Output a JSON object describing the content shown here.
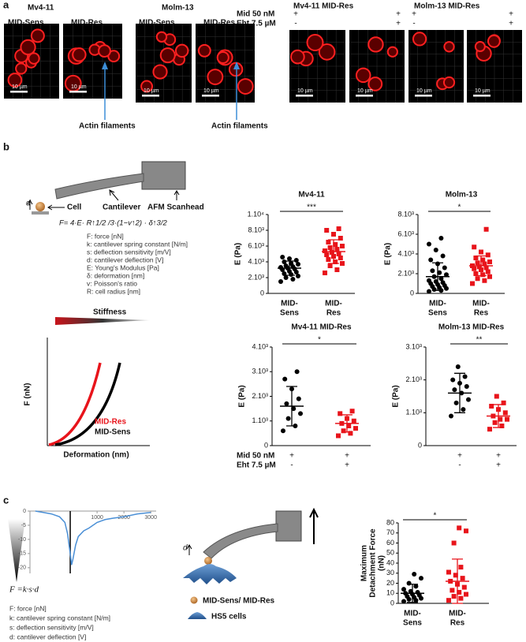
{
  "panel_a": {
    "label": "a",
    "cell_lines": [
      "Mv4-11",
      "Molm-13"
    ],
    "conditions": [
      "MID-Sens",
      "MID-Res",
      "MID-Sens",
      "MID-Res"
    ],
    "scale_bar": "10 µm",
    "annotation": "Actin filaments",
    "treatment_labels": [
      "Mid 50 nM",
      "Eht 7.5 µM"
    ],
    "treated_titles": [
      "Mv4-11 MID-Res",
      "Molm-13 MID-Res"
    ],
    "treatment_signs": [
      [
        "+",
        "-"
      ],
      [
        "+",
        "+"
      ],
      [
        "+",
        "-"
      ],
      [
        "+",
        "+"
      ]
    ]
  },
  "panel_b": {
    "label": "b",
    "afm_labels": {
      "cell": "Cell",
      "cantilever": "Cantilever",
      "scanhead": "AFM Scanhead",
      "deflection": "d"
    },
    "formula": "F= 4·E· R↑1/2 /3·(1−v↑2) · δ↑3/2",
    "legend": [
      "F: force [nN]",
      "k: cantilever spring constant [N/m]",
      "s: deflection sensitivity [m/V]",
      "d: cantilever deflection [V]",
      "E: Young's Modulus [Pa]",
      "δ: deformation [nm]",
      "v: Poisson's ratio",
      "R: cell radius [nm]"
    ],
    "stiffness": {
      "title": "Stiffness",
      "y_label": "F (nN)",
      "x_label": "Deformation (nm)",
      "curves": [
        "MID-Res",
        "MID-Sens"
      ]
    },
    "charts": [
      {
        "type": "dot",
        "title": "Mv4-11",
        "y_label": "E (Pa)",
        "ylim": [
          0,
          10000
        ],
        "yticks": [
          0,
          {
            "value": 2000,
            "label": "2.10³"
          },
          {
            "value": 4000,
            "label": "4.10³"
          },
          {
            "value": 6000,
            "label": "6.10³"
          },
          {
            "value": 8000,
            "label": "8.10³"
          },
          {
            "value": 10000,
            "label": "1.10⁴"
          }
        ],
        "categories": [
          [
            "MID-",
            "Sens"
          ],
          [
            "MID-",
            "Res"
          ]
        ],
        "significance": "***",
        "groups": [
          {
            "color": "#000000",
            "marker": "circle",
            "values": [
              1500,
              1800,
              2000,
              2200,
              2400,
              2500,
              2700,
              2800,
              3000,
              3100,
              3200,
              3300,
              3400,
              3500,
              3700,
              3800,
              4000,
              4200,
              4400,
              4600
            ],
            "mean": 3200,
            "sd": 900
          },
          {
            "color": "#e8141b",
            "marker": "square",
            "values": [
              2600,
              3000,
              3500,
              3800,
              4000,
              4300,
              4500,
              4700,
              4900,
              5000,
              5200,
              5400,
              5600,
              5800,
              6000,
              6200,
              6500,
              7000,
              7500,
              8000,
              8200
            ],
            "mean": 5300,
            "sd": 1500
          }
        ]
      },
      {
        "type": "dot",
        "title": "Molm-13",
        "y_label": "E (Pa)",
        "ylim": [
          0,
          8000
        ],
        "yticks": [
          0,
          {
            "value": 2000,
            "label": "2.10³"
          },
          {
            "value": 4000,
            "label": "4.10³"
          },
          {
            "value": 6000,
            "label": "6.10³"
          },
          {
            "value": 8000,
            "label": "8.10³"
          }
        ],
        "categories": [
          [
            "MID-",
            "Sens"
          ],
          [
            "MID-",
            "Res"
          ]
        ],
        "significance": "*",
        "groups": [
          {
            "color": "#000000",
            "marker": "circle",
            "values": [
              200,
              300,
              400,
              500,
              600,
              700,
              800,
              900,
              1000,
              1100,
              1200,
              1300,
              1500,
              1700,
              1900,
              2100,
              2300,
              2600,
              3000,
              3400,
              3800,
              4400,
              5000,
              5600
            ],
            "mean": 1700,
            "sd": 1400
          },
          {
            "color": "#e8141b",
            "marker": "square",
            "values": [
              1000,
              1300,
              1500,
              1700,
              1900,
              2000,
              2200,
              2400,
              2500,
              2600,
              2700,
              2800,
              3000,
              3100,
              3200,
              3400,
              3600,
              3900,
              4200,
              4700,
              6500
            ],
            "mean": 2800,
            "sd": 1000
          }
        ]
      },
      {
        "type": "dot",
        "title": "Mv4-11 MID-Res",
        "y_label": "E (Pa)",
        "ylim": [
          0,
          4000
        ],
        "yticks": [
          0,
          {
            "value": 1000,
            "label": "1.10³"
          },
          {
            "value": 2000,
            "label": "2.10³"
          },
          {
            "value": 3000,
            "label": "3.10³"
          },
          {
            "value": 4000,
            "label": "4.10³"
          }
        ],
        "significance": "*",
        "treatment_rows": [
          {
            "label": "Mid 50 nM",
            "signs": [
              "+",
              "+"
            ]
          },
          {
            "label": "Eht 7.5 µM",
            "signs": [
              "-",
              "+"
            ]
          }
        ],
        "groups": [
          {
            "color": "#000000",
            "marker": "circle",
            "values": [
              600,
              800,
              1100,
              1300,
              1500,
              1700,
              1900,
              2300,
              2700,
              3000
            ],
            "mean": 1600,
            "sd": 800
          },
          {
            "color": "#e8141b",
            "marker": "square",
            "values": [
              400,
              500,
              600,
              700,
              800,
              900,
              1000,
              1100,
              1300,
              1400
            ],
            "mean": 900,
            "sd": 350
          }
        ]
      },
      {
        "type": "dot",
        "title": "Molm-13 MID-Res",
        "y_label": "E (Pa)",
        "ylim": [
          0,
          3000
        ],
        "yticks": [
          0,
          {
            "value": 1000,
            "label": "1.10³"
          },
          {
            "value": 2000,
            "label": "2.10³"
          },
          {
            "value": 3000,
            "label": "3.10³"
          }
        ],
        "significance": "**",
        "treatment_rows": [
          {
            "label": "Mid 50 nM",
            "signs": [
              "+",
              "+"
            ]
          },
          {
            "label": "Eht 7.5 µM",
            "signs": [
              "-",
              "+"
            ]
          }
        ],
        "groups": [
          {
            "color": "#000000",
            "marker": "circle",
            "values": [
              900,
              1100,
              1300,
              1400,
              1600,
              1700,
              1800,
              1900,
              2000,
              2100,
              2400
            ],
            "mean": 1600,
            "sd": 600
          },
          {
            "color": "#e8141b",
            "marker": "square",
            "values": [
              500,
              600,
              700,
              800,
              800,
              900,
              1000,
              1100,
              1200,
              1300,
              1500
            ],
            "mean": 900,
            "sd": 350
          }
        ]
      }
    ]
  },
  "panel_c": {
    "label": "c",
    "force_curve": {
      "type": "line",
      "color": "#4a8fd6",
      "xlim": [
        -1500,
        3200
      ],
      "ylim": [
        -22,
        0
      ],
      "xticks": [
        1000,
        2000,
        3000
      ],
      "yticks": [
        0,
        -5,
        -10,
        -15,
        -20
      ],
      "x": [
        -1300,
        -1000,
        -700,
        -400,
        -200,
        -100,
        0,
        50,
        100,
        200,
        300,
        500,
        700,
        1000,
        1300,
        1600,
        2000,
        2500,
        3000
      ],
      "y": [
        0,
        -0.5,
        -1,
        -2,
        -4,
        -8,
        -15,
        -19,
        -17,
        -12,
        -9,
        -7,
        -6,
        -4,
        -3,
        -2.5,
        -2,
        -1,
        -0.5
      ]
    },
    "formula": "F =k·s·d",
    "legend": [
      "F: force [nN]",
      "k: cantilever spring constant [N/m]",
      "s: deflection sensitivity [m/V]",
      "d: cantilever deflection [V]"
    ],
    "diagram": {
      "deflection": "d",
      "legend": [
        "MID-Sens/ MID-Res",
        "HS5 cells"
      ]
    },
    "chart": {
      "type": "dot",
      "y_label": [
        "Maximum",
        "Detachment Force",
        "(nN)"
      ],
      "ylim": [
        0,
        80
      ],
      "yticks": [
        0,
        10,
        20,
        30,
        40,
        50,
        60,
        70,
        80
      ],
      "categories": [
        [
          "MID-",
          "Sens"
        ],
        [
          "MID-",
          "Res"
        ]
      ],
      "significance": "*",
      "groups": [
        {
          "color": "#000000",
          "marker": "circle",
          "values": [
            2,
            3,
            4,
            5,
            6,
            7,
            8,
            9,
            10,
            11,
            12,
            14,
            17,
            20,
            25,
            29
          ],
          "mean": 10,
          "sd": 9
        },
        {
          "color": "#e8141b",
          "marker": "square",
          "values": [
            3,
            5,
            7,
            9,
            11,
            13,
            16,
            19,
            22,
            25,
            28,
            31,
            36,
            60,
            72,
            75
          ],
          "mean": 22,
          "sd": 22
        }
      ]
    }
  }
}
